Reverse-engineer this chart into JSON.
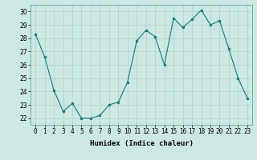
{
  "x": [
    0,
    1,
    2,
    3,
    4,
    5,
    6,
    7,
    8,
    9,
    10,
    11,
    12,
    13,
    14,
    15,
    16,
    17,
    18,
    19,
    20,
    21,
    22,
    23
  ],
  "y": [
    28.3,
    26.6,
    24.1,
    22.5,
    23.1,
    22.0,
    22.0,
    22.2,
    23.0,
    23.2,
    24.7,
    27.8,
    28.6,
    28.1,
    26.0,
    29.5,
    28.8,
    29.4,
    30.1,
    29.0,
    29.3,
    27.2,
    25.0,
    23.5
  ],
  "line_color": "#1a7a6e",
  "marker_color": "#1a7a6e",
  "bg_color": "#cce8e4",
  "grid_color": "#b0d4cf",
  "xlabel": "Humidex (Indice chaleur)",
  "xlim": [
    -0.5,
    23.5
  ],
  "ylim": [
    21.5,
    30.5
  ],
  "yticks": [
    22,
    23,
    24,
    25,
    26,
    27,
    28,
    29,
    30
  ],
  "xtick_labels": [
    "0",
    "1",
    "2",
    "3",
    "4",
    "5",
    "6",
    "7",
    "8",
    "9",
    "10",
    "11",
    "12",
    "13",
    "14",
    "15",
    "16",
    "17",
    "18",
    "19",
    "20",
    "21",
    "22",
    "23"
  ],
  "label_fontsize": 6.5,
  "tick_fontsize": 5.5
}
